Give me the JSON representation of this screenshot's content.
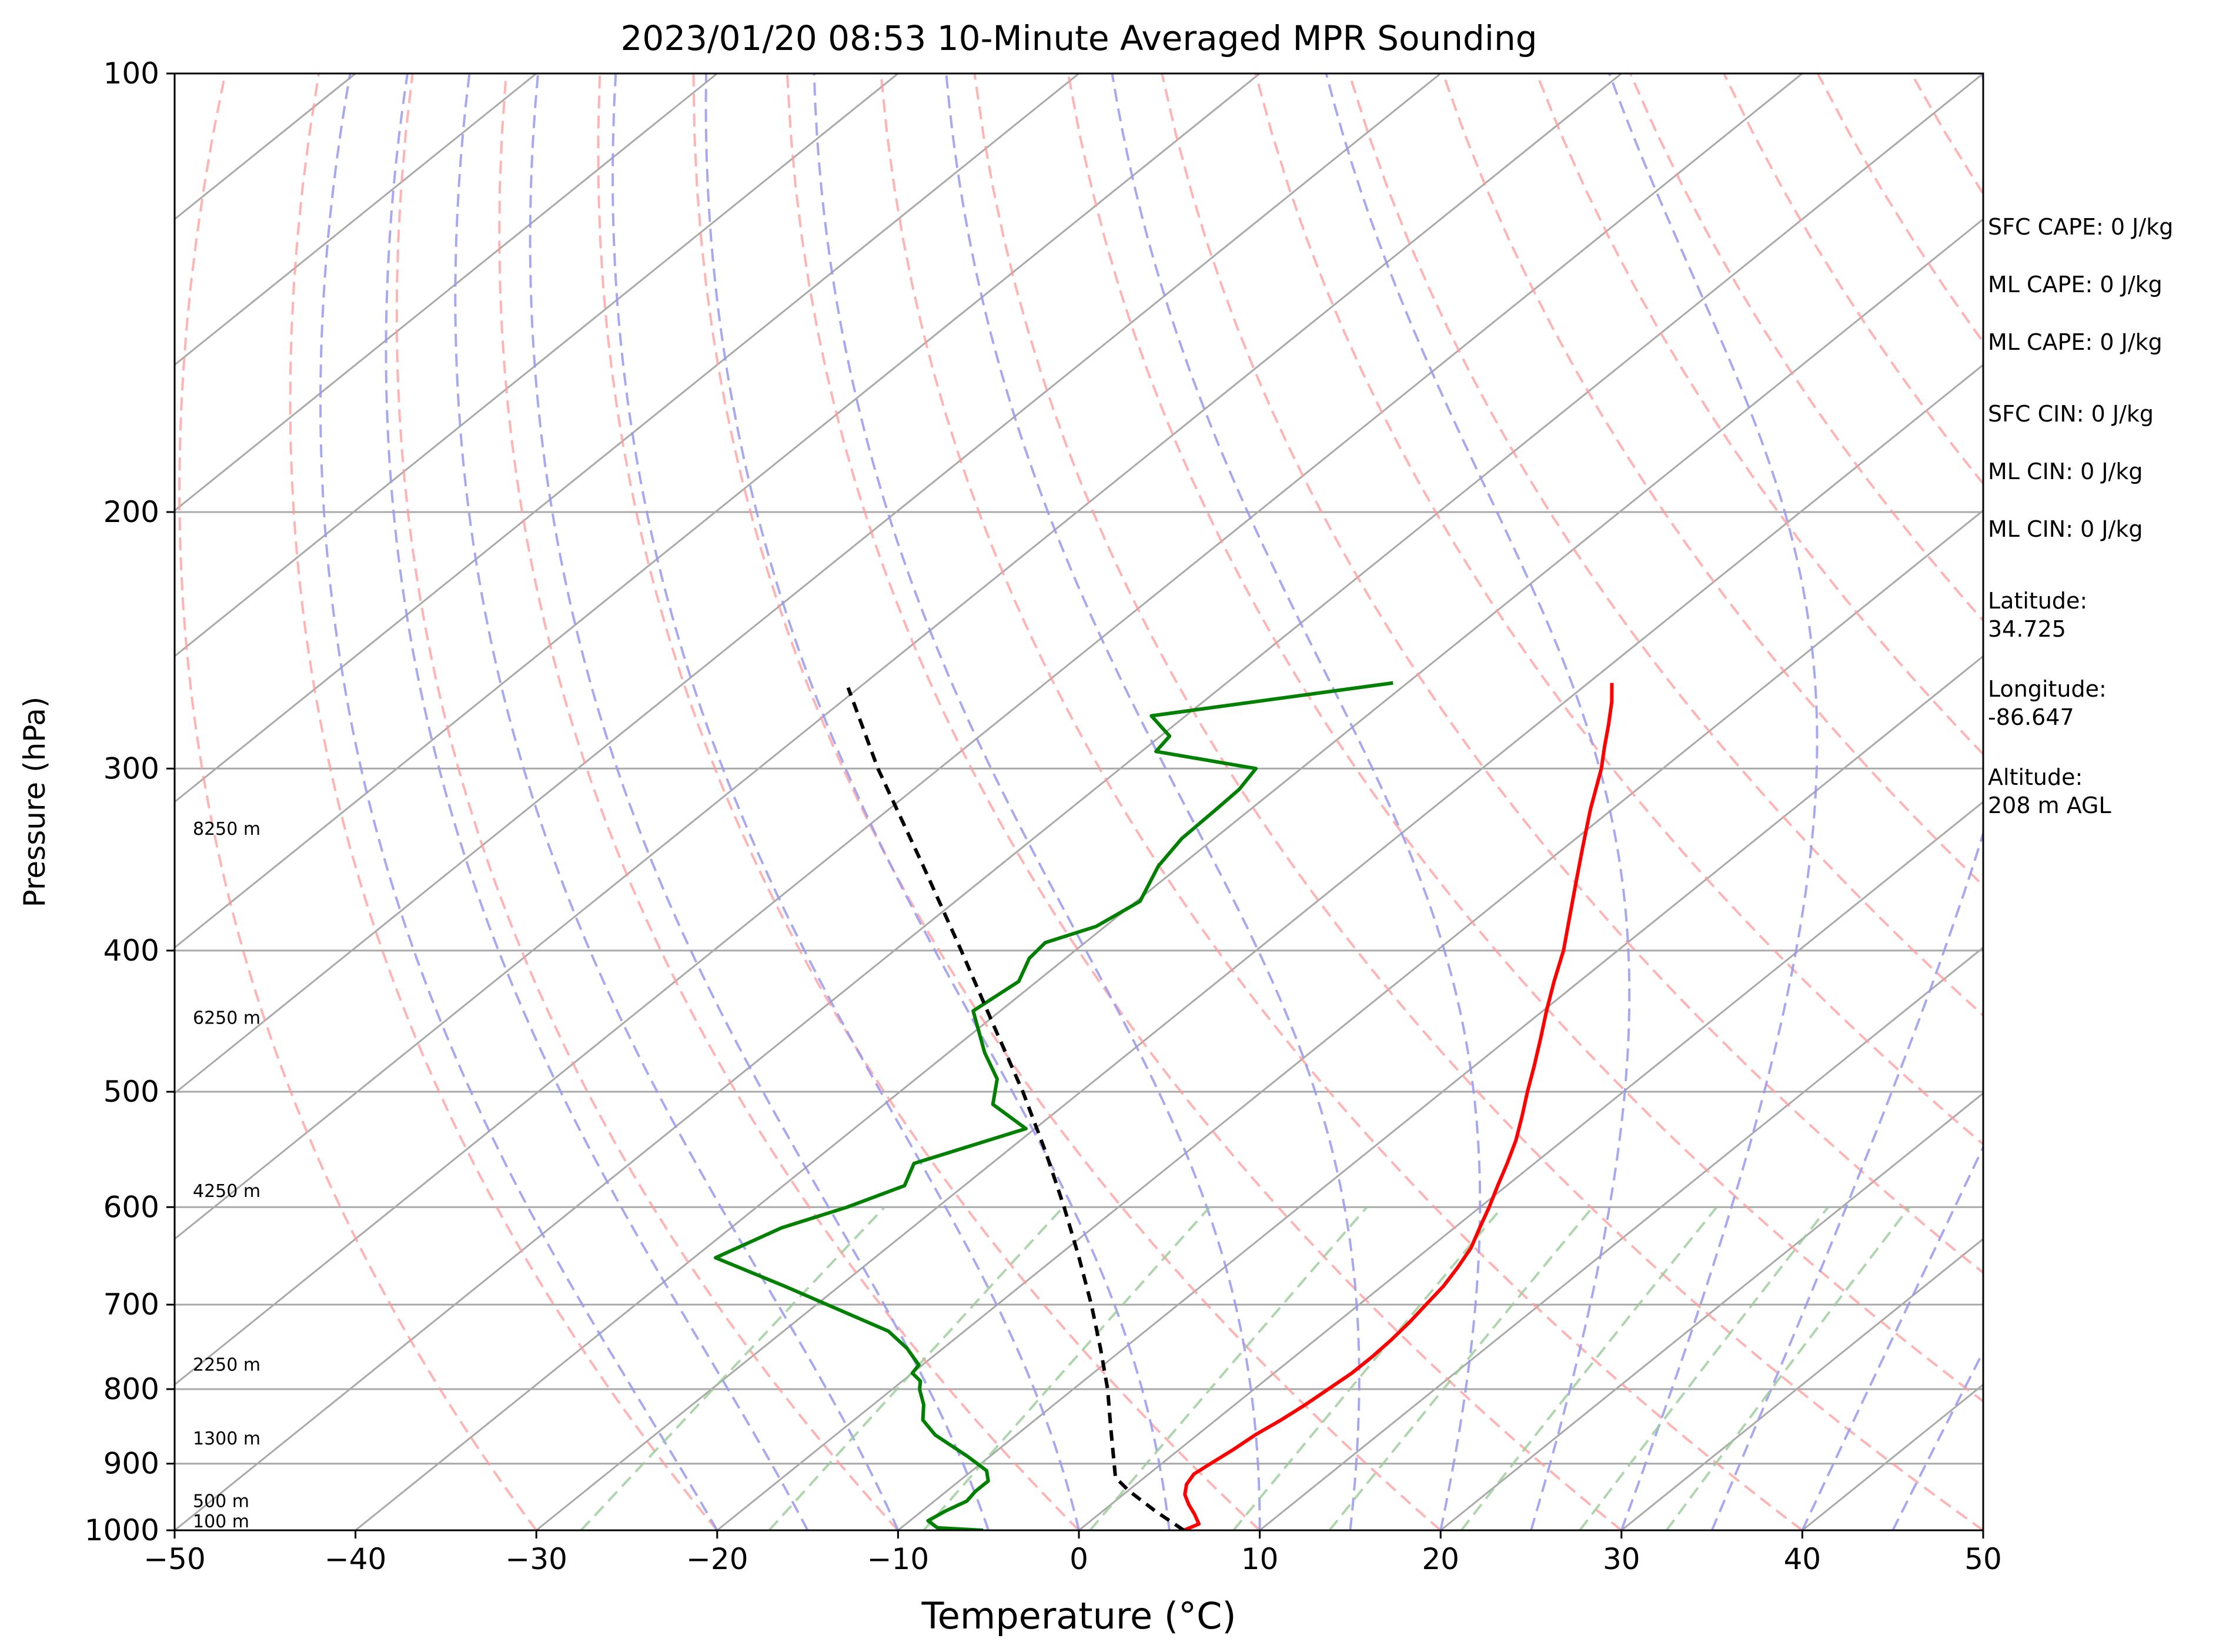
{
  "chart_data": {
    "type": "line",
    "chart_kind": "skew-T log-p sounding",
    "title": "2023/01/20 08:53 10-Minute Averaged MPR Sounding",
    "xlabel": "Temperature (°C)",
    "ylabel": "Pressure (hPa)",
    "xlim": [
      -50,
      50
    ],
    "ylim": [
      1000,
      100
    ],
    "y_scale": "log",
    "x_ticks": [
      -50,
      -40,
      -30,
      -20,
      -10,
      0,
      10,
      20,
      30,
      40,
      50
    ],
    "y_ticks": [
      100,
      200,
      300,
      400,
      500,
      600,
      700,
      800,
      900,
      1000
    ],
    "grid": true,
    "series": [
      {
        "color": "#ff0000",
        "points": [
          [
            1000,
            5.8
          ],
          [
            990,
            6.2
          ],
          [
            975,
            5.3
          ],
          [
            960,
            4.3
          ],
          [
            945,
            3.4
          ],
          [
            930,
            2.8
          ],
          [
            915,
            2.5
          ],
          [
            900,
            2.7
          ],
          [
            880,
            3.0
          ],
          [
            860,
            3.2
          ],
          [
            840,
            3.6
          ],
          [
            820,
            3.9
          ],
          [
            800,
            4.1
          ],
          [
            780,
            4.3
          ],
          [
            760,
            4.3
          ],
          [
            740,
            4.2
          ],
          [
            720,
            4.0
          ],
          [
            700,
            3.7
          ],
          [
            680,
            3.4
          ],
          [
            660,
            2.9
          ],
          [
            640,
            2.3
          ],
          [
            620,
            1.4
          ],
          [
            600,
            0.5
          ],
          [
            580,
            -0.5
          ],
          [
            560,
            -1.5
          ],
          [
            540,
            -2.6
          ],
          [
            520,
            -3.9
          ],
          [
            500,
            -5.3
          ],
          [
            480,
            -6.7
          ],
          [
            460,
            -8.2
          ],
          [
            440,
            -9.8
          ],
          [
            420,
            -11.4
          ],
          [
            400,
            -13.0
          ],
          [
            380,
            -14.9
          ],
          [
            360,
            -16.9
          ],
          [
            340,
            -19.0
          ],
          [
            320,
            -21.2
          ],
          [
            300,
            -23.4
          ],
          [
            290,
            -24.7
          ],
          [
            280,
            -26.0
          ],
          [
            270,
            -27.4
          ],
          [
            262,
            -28.7
          ]
        ]
      },
      {
        "color": "#008000",
        "points": [
          [
            1000,
            -5.3
          ],
          [
            996,
            -8.0
          ],
          [
            985,
            -9.0
          ],
          [
            970,
            -8.7
          ],
          [
            955,
            -8.2
          ],
          [
            940,
            -8.4
          ],
          [
            925,
            -8.4
          ],
          [
            910,
            -9.2
          ],
          [
            890,
            -11.2
          ],
          [
            860,
            -14.5
          ],
          [
            840,
            -16.2
          ],
          [
            820,
            -17.2
          ],
          [
            800,
            -18.5
          ],
          [
            790,
            -19.0
          ],
          [
            780,
            -20.0
          ],
          [
            770,
            -20.2
          ],
          [
            750,
            -22.0
          ],
          [
            730,
            -24.2
          ],
          [
            700,
            -29.4
          ],
          [
            680,
            -33.0
          ],
          [
            650,
            -38.8
          ],
          [
            620,
            -37.2
          ],
          [
            600,
            -35.0
          ],
          [
            580,
            -33.3
          ],
          [
            560,
            -34.3
          ],
          [
            530,
            -30.5
          ],
          [
            510,
            -34.0
          ],
          [
            490,
            -35.5
          ],
          [
            470,
            -38.0
          ],
          [
            440,
            -41.5
          ],
          [
            420,
            -41.0
          ],
          [
            405,
            -42.0
          ],
          [
            395,
            -42.2
          ],
          [
            385,
            -40.5
          ],
          [
            370,
            -39.8
          ],
          [
            350,
            -41.2
          ],
          [
            335,
            -41.8
          ],
          [
            320,
            -41.9
          ],
          [
            310,
            -42.0
          ],
          [
            300,
            -42.5
          ],
          [
            292,
            -49.2
          ],
          [
            285,
            -49.5
          ],
          [
            276,
            -51.9
          ],
          [
            262,
            -40.8
          ]
        ]
      },
      {
        "color": "#000000",
        "style": "dashed",
        "points": [
          [
            1000,
            5.8
          ],
          [
            970,
            2.9
          ],
          [
            940,
            0.1
          ],
          [
            920,
            -1.6
          ],
          [
            850,
            -5.3
          ],
          [
            800,
            -8.1
          ],
          [
            750,
            -11.3
          ],
          [
            700,
            -14.8
          ],
          [
            650,
            -18.7
          ],
          [
            600,
            -23.0
          ],
          [
            550,
            -27.8
          ],
          [
            500,
            -33.2
          ],
          [
            450,
            -39.4
          ],
          [
            400,
            -46.3
          ],
          [
            350,
            -54.2
          ],
          [
            300,
            -63.4
          ],
          [
            264,
            -70.6
          ]
        ]
      }
    ],
    "height_labels": [
      {
        "pressure": 1000,
        "label": "100 m"
      },
      {
        "pressure": 955,
        "label": "500 m"
      },
      {
        "pressure": 865,
        "label": "1300 m"
      },
      {
        "pressure": 770,
        "label": "2250 m"
      },
      {
        "pressure": 585,
        "label": "4250 m"
      },
      {
        "pressure": 445,
        "label": "6250 m"
      },
      {
        "pressure": 330,
        "label": "8250 m"
      }
    ],
    "colors": {
      "temperature": "#ff0000",
      "dewpoint": "#008000",
      "parcel": "#000000",
      "isotherms": "#a9a9a9",
      "dry_adiabats": "#ff9999",
      "moist_adiabats": "#9999ee",
      "mixing_ratio": "#99cc99"
    }
  },
  "info": {
    "sfc_cape": "SFC CAPE: 0 J/kg",
    "ml_cape_1": "ML CAPE: 0 J/kg",
    "ml_cape_2": "ML CAPE: 0 J/kg",
    "sfc_cin": "SFC CIN: 0 J/kg",
    "ml_cin_1": "ML CIN: 0 J/kg",
    "ml_cin_2": "ML CIN: 0 J/kg",
    "latitude_label": "Latitude:",
    "latitude_value": "34.725",
    "longitude_label": "Longitude:",
    "longitude_value": "-86.647",
    "altitude_label": "Altitude:",
    "altitude_value": "208 m AGL"
  }
}
